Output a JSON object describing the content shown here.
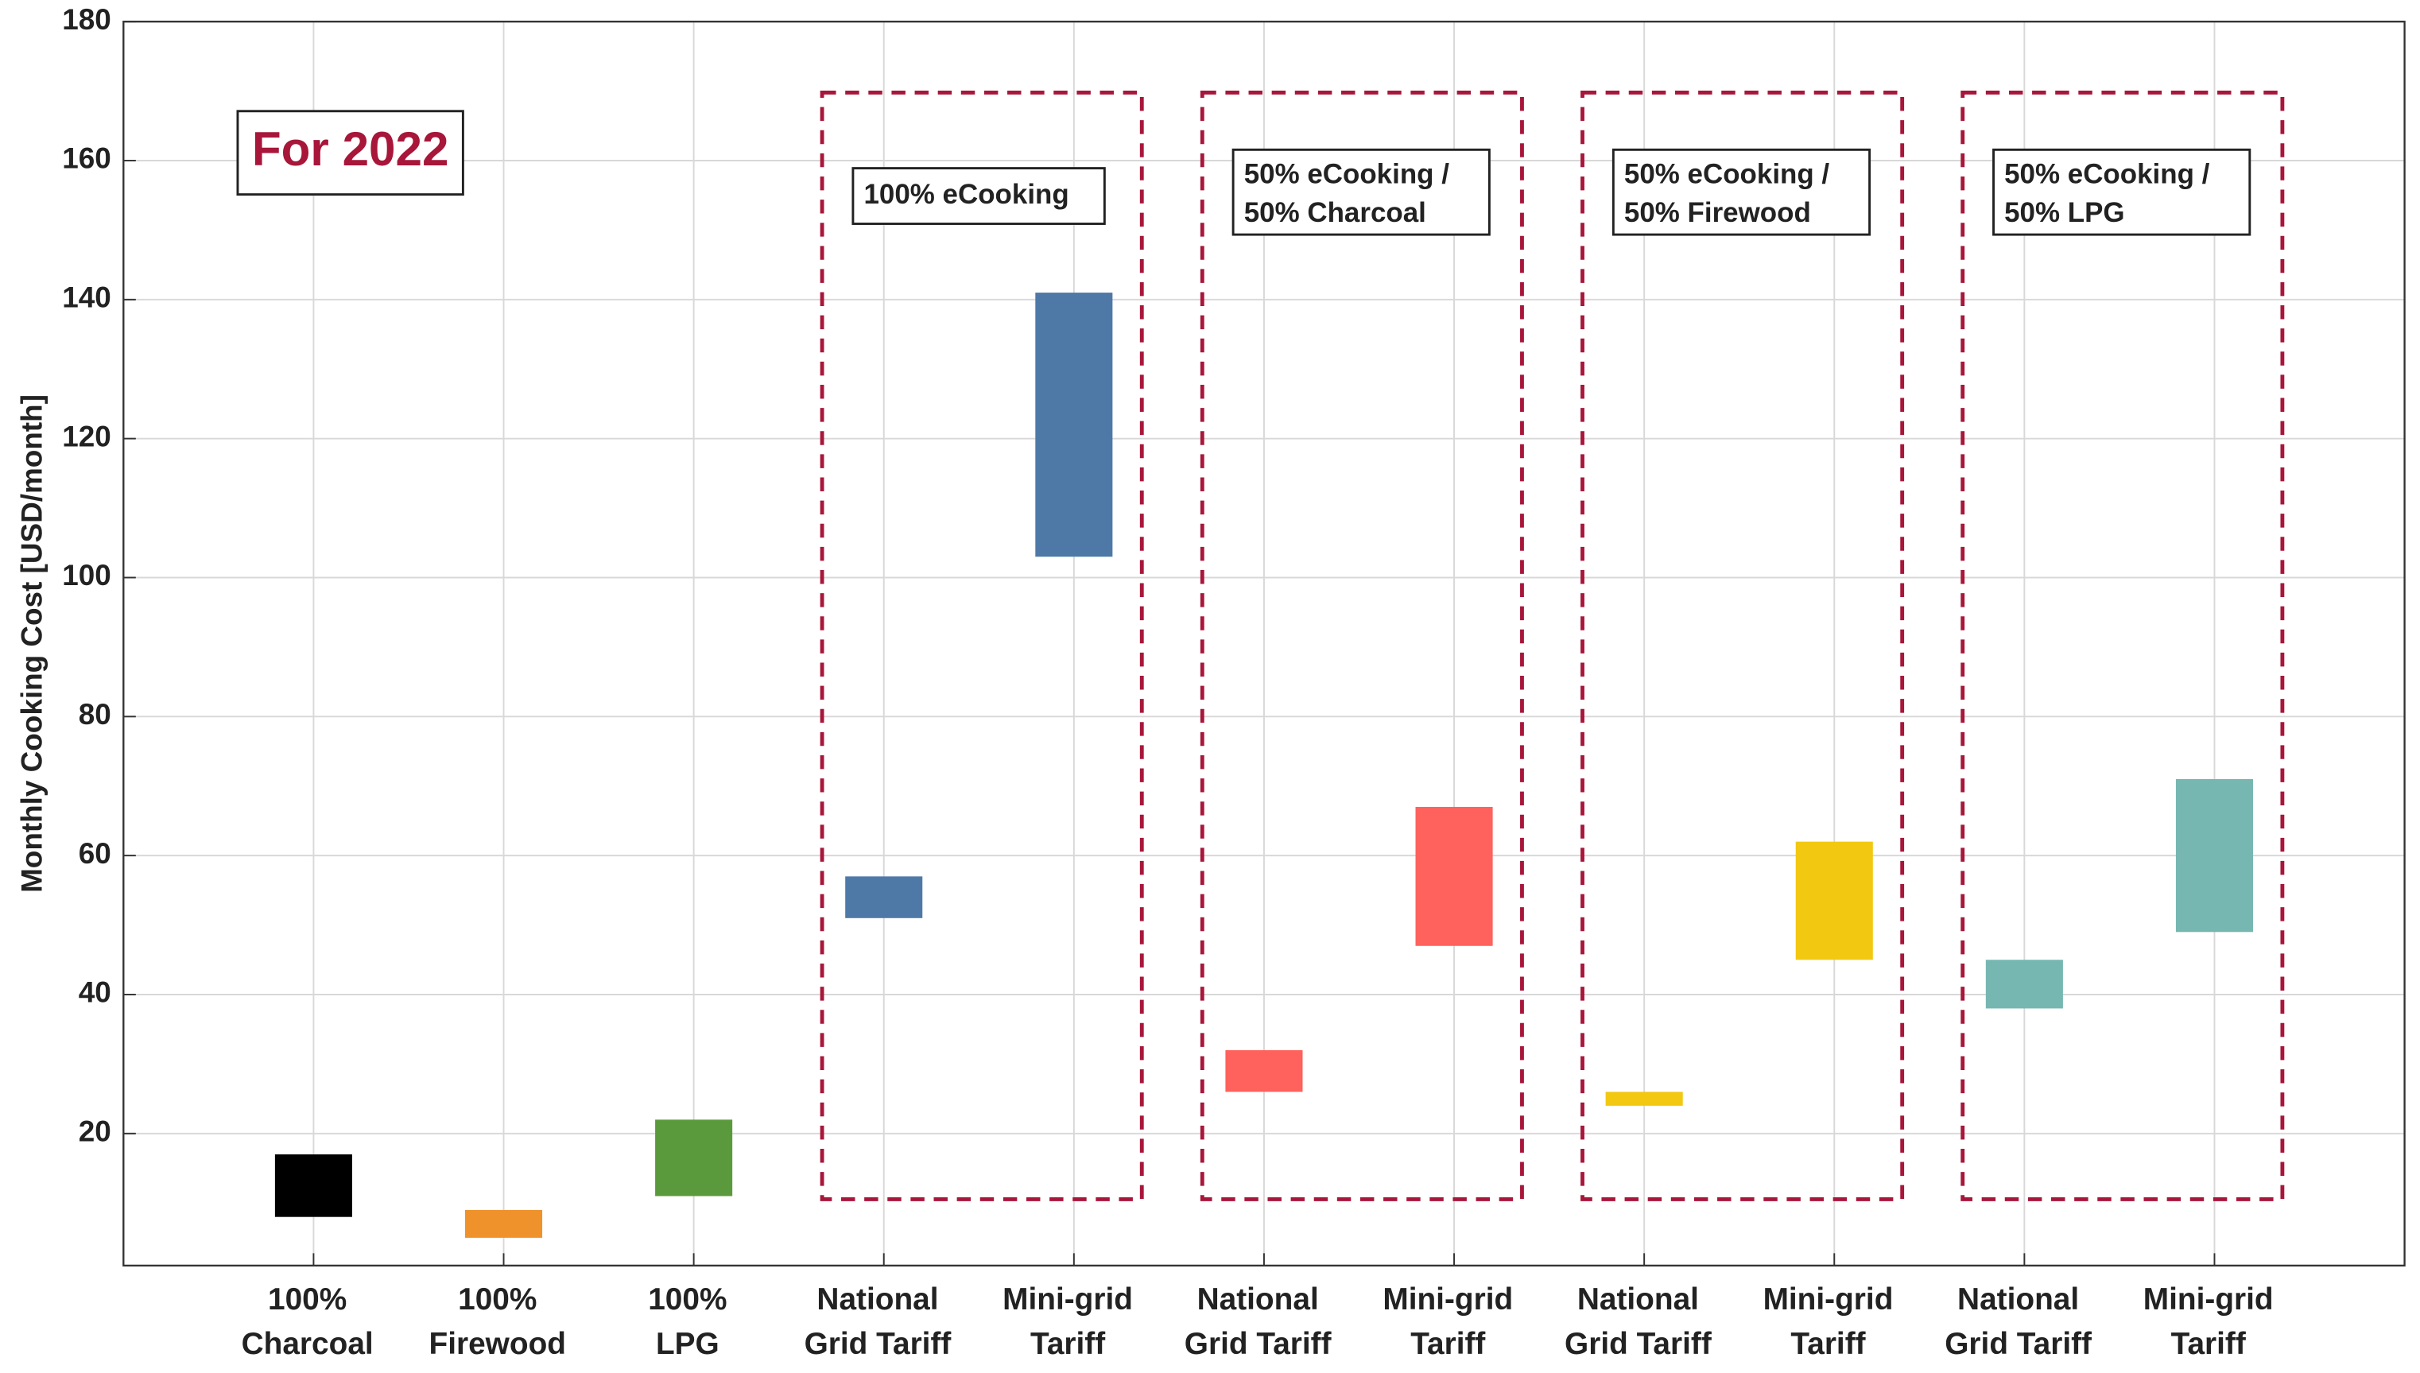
{
  "chart_data": {
    "type": "floating-bar",
    "ylabel": "Monthly Cooking Cost [USD/month]",
    "annotation": "For 2022",
    "categories": [
      [
        "100%",
        "Charcoal"
      ],
      [
        "100%",
        "Firewood"
      ],
      [
        "100%",
        "LPG"
      ],
      [
        "National",
        "Grid Tariff"
      ],
      [
        "Mini-grid",
        "Tariff"
      ],
      [
        "National",
        "Grid Tariff"
      ],
      [
        "Mini-grid",
        "Tariff"
      ],
      [
        "National",
        "Grid Tariff"
      ],
      [
        "Mini-grid",
        "Tariff"
      ],
      [
        "National",
        "Grid Tariff"
      ],
      [
        "Mini-grid",
        "Tariff"
      ]
    ],
    "low": [
      8,
      5,
      11,
      51,
      103,
      26,
      47,
      24,
      45,
      38,
      49
    ],
    "high": [
      17,
      9,
      22,
      57,
      141,
      32,
      67,
      26,
      62,
      45,
      71
    ],
    "colors": [
      "#000000",
      "#f0922b",
      "#5b9a3c",
      "#4e79a7",
      "#4e79a7",
      "#ff615c",
      "#ff615c",
      "#f2c811",
      "#f2c811",
      "#76b7b2",
      "#76b7b2"
    ],
    "groups": [
      {
        "label": [
          "100% eCooking"
        ],
        "categories": [
          3,
          4
        ]
      },
      {
        "label": [
          "50% eCooking /",
          "50% Charcoal"
        ],
        "categories": [
          5,
          6
        ]
      },
      {
        "label": [
          "50% eCooking /",
          "50% Firewood"
        ],
        "categories": [
          7,
          8
        ]
      },
      {
        "label": [
          "50% eCooking /",
          "50% LPG"
        ],
        "categories": [
          9,
          10
        ]
      }
    ],
    "ylim": [
      1,
      180
    ],
    "yticks": [
      20,
      40,
      60,
      80,
      100,
      120,
      140,
      160,
      180
    ],
    "grid": true
  }
}
